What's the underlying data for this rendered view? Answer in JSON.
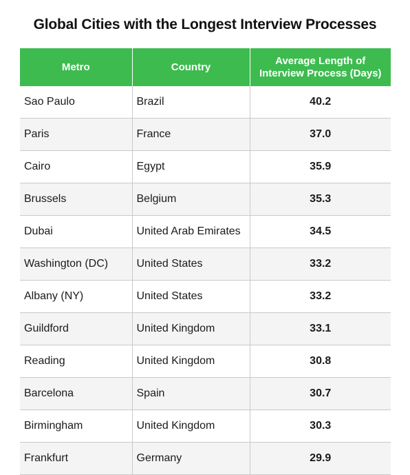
{
  "title": "Global Cities with the Longest Interview Processes",
  "headers": {
    "metro": "Metro",
    "country": "Country",
    "days": "Average Length of Interview Process (Days)"
  },
  "colors": {
    "header_bg": "#3dbb4f",
    "header_text": "#ffffff"
  },
  "chart_data": {
    "type": "table",
    "title": "Global Cities with the Longest Interview Processes",
    "columns": [
      "Metro",
      "Country",
      "Average Length of Interview Process (Days)"
    ],
    "rows": [
      {
        "metro": "Sao Paulo",
        "country": "Brazil",
        "days": "40.2"
      },
      {
        "metro": "Paris",
        "country": "France",
        "days": "37.0"
      },
      {
        "metro": "Cairo",
        "country": "Egypt",
        "days": "35.9"
      },
      {
        "metro": "Brussels",
        "country": "Belgium",
        "days": "35.3"
      },
      {
        "metro": "Dubai",
        "country": "United Arab Emirates",
        "days": "34.5"
      },
      {
        "metro": "Washington (DC)",
        "country": "United States",
        "days": "33.2"
      },
      {
        "metro": "Albany (NY)",
        "country": "United States",
        "days": "33.2"
      },
      {
        "metro": "Guildford",
        "country": "United Kingdom",
        "days": "33.1"
      },
      {
        "metro": "Reading",
        "country": "United Kingdom",
        "days": "30.8"
      },
      {
        "metro": "Barcelona",
        "country": "Spain",
        "days": "30.7"
      },
      {
        "metro": "Birmingham",
        "country": "United Kingdom",
        "days": "30.3"
      },
      {
        "metro": "Frankfurt",
        "country": "Germany",
        "days": "29.9"
      }
    ]
  }
}
